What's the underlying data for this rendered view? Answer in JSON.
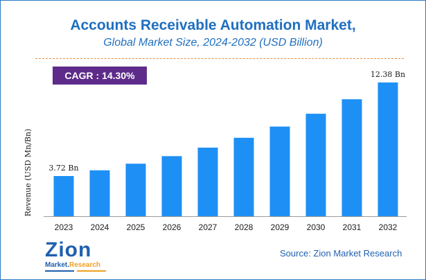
{
  "title": "Accounts Receivable Automation Market,",
  "subtitle": "Global Market Size, 2024-2032 (USD Billion)",
  "cagr_label": "CAGR :",
  "cagr_value": "14.30%",
  "source": "Source: Zion Market Research",
  "logo": {
    "line1": "Zion",
    "line2a": "Market.",
    "line2b": "Research"
  },
  "colors": {
    "bar": "#1e90f5",
    "title": "#1f6fc0",
    "cagr_bg": "#5e2b8a",
    "divider": "#e8893a"
  },
  "chart_data": {
    "type": "bar",
    "title": "Accounts Receivable Automation Market, Global Market Size, 2024-2032 (USD Billion)",
    "xlabel": "",
    "ylabel": "Revenue (USD Mn/Bn)",
    "categories": [
      "2023",
      "2024",
      "2025",
      "2026",
      "2027",
      "2028",
      "2029",
      "2030",
      "2031",
      "2032"
    ],
    "values": [
      3.72,
      4.25,
      4.86,
      5.56,
      6.35,
      7.26,
      8.3,
      9.49,
      10.83,
      12.38
    ],
    "data_labels": [
      {
        "index": 0,
        "text": "3.72 Bn"
      },
      {
        "index": 9,
        "text": "12.38 Bn"
      }
    ],
    "ylim": [
      0,
      12.38
    ],
    "grid": false,
    "legend": "none"
  }
}
